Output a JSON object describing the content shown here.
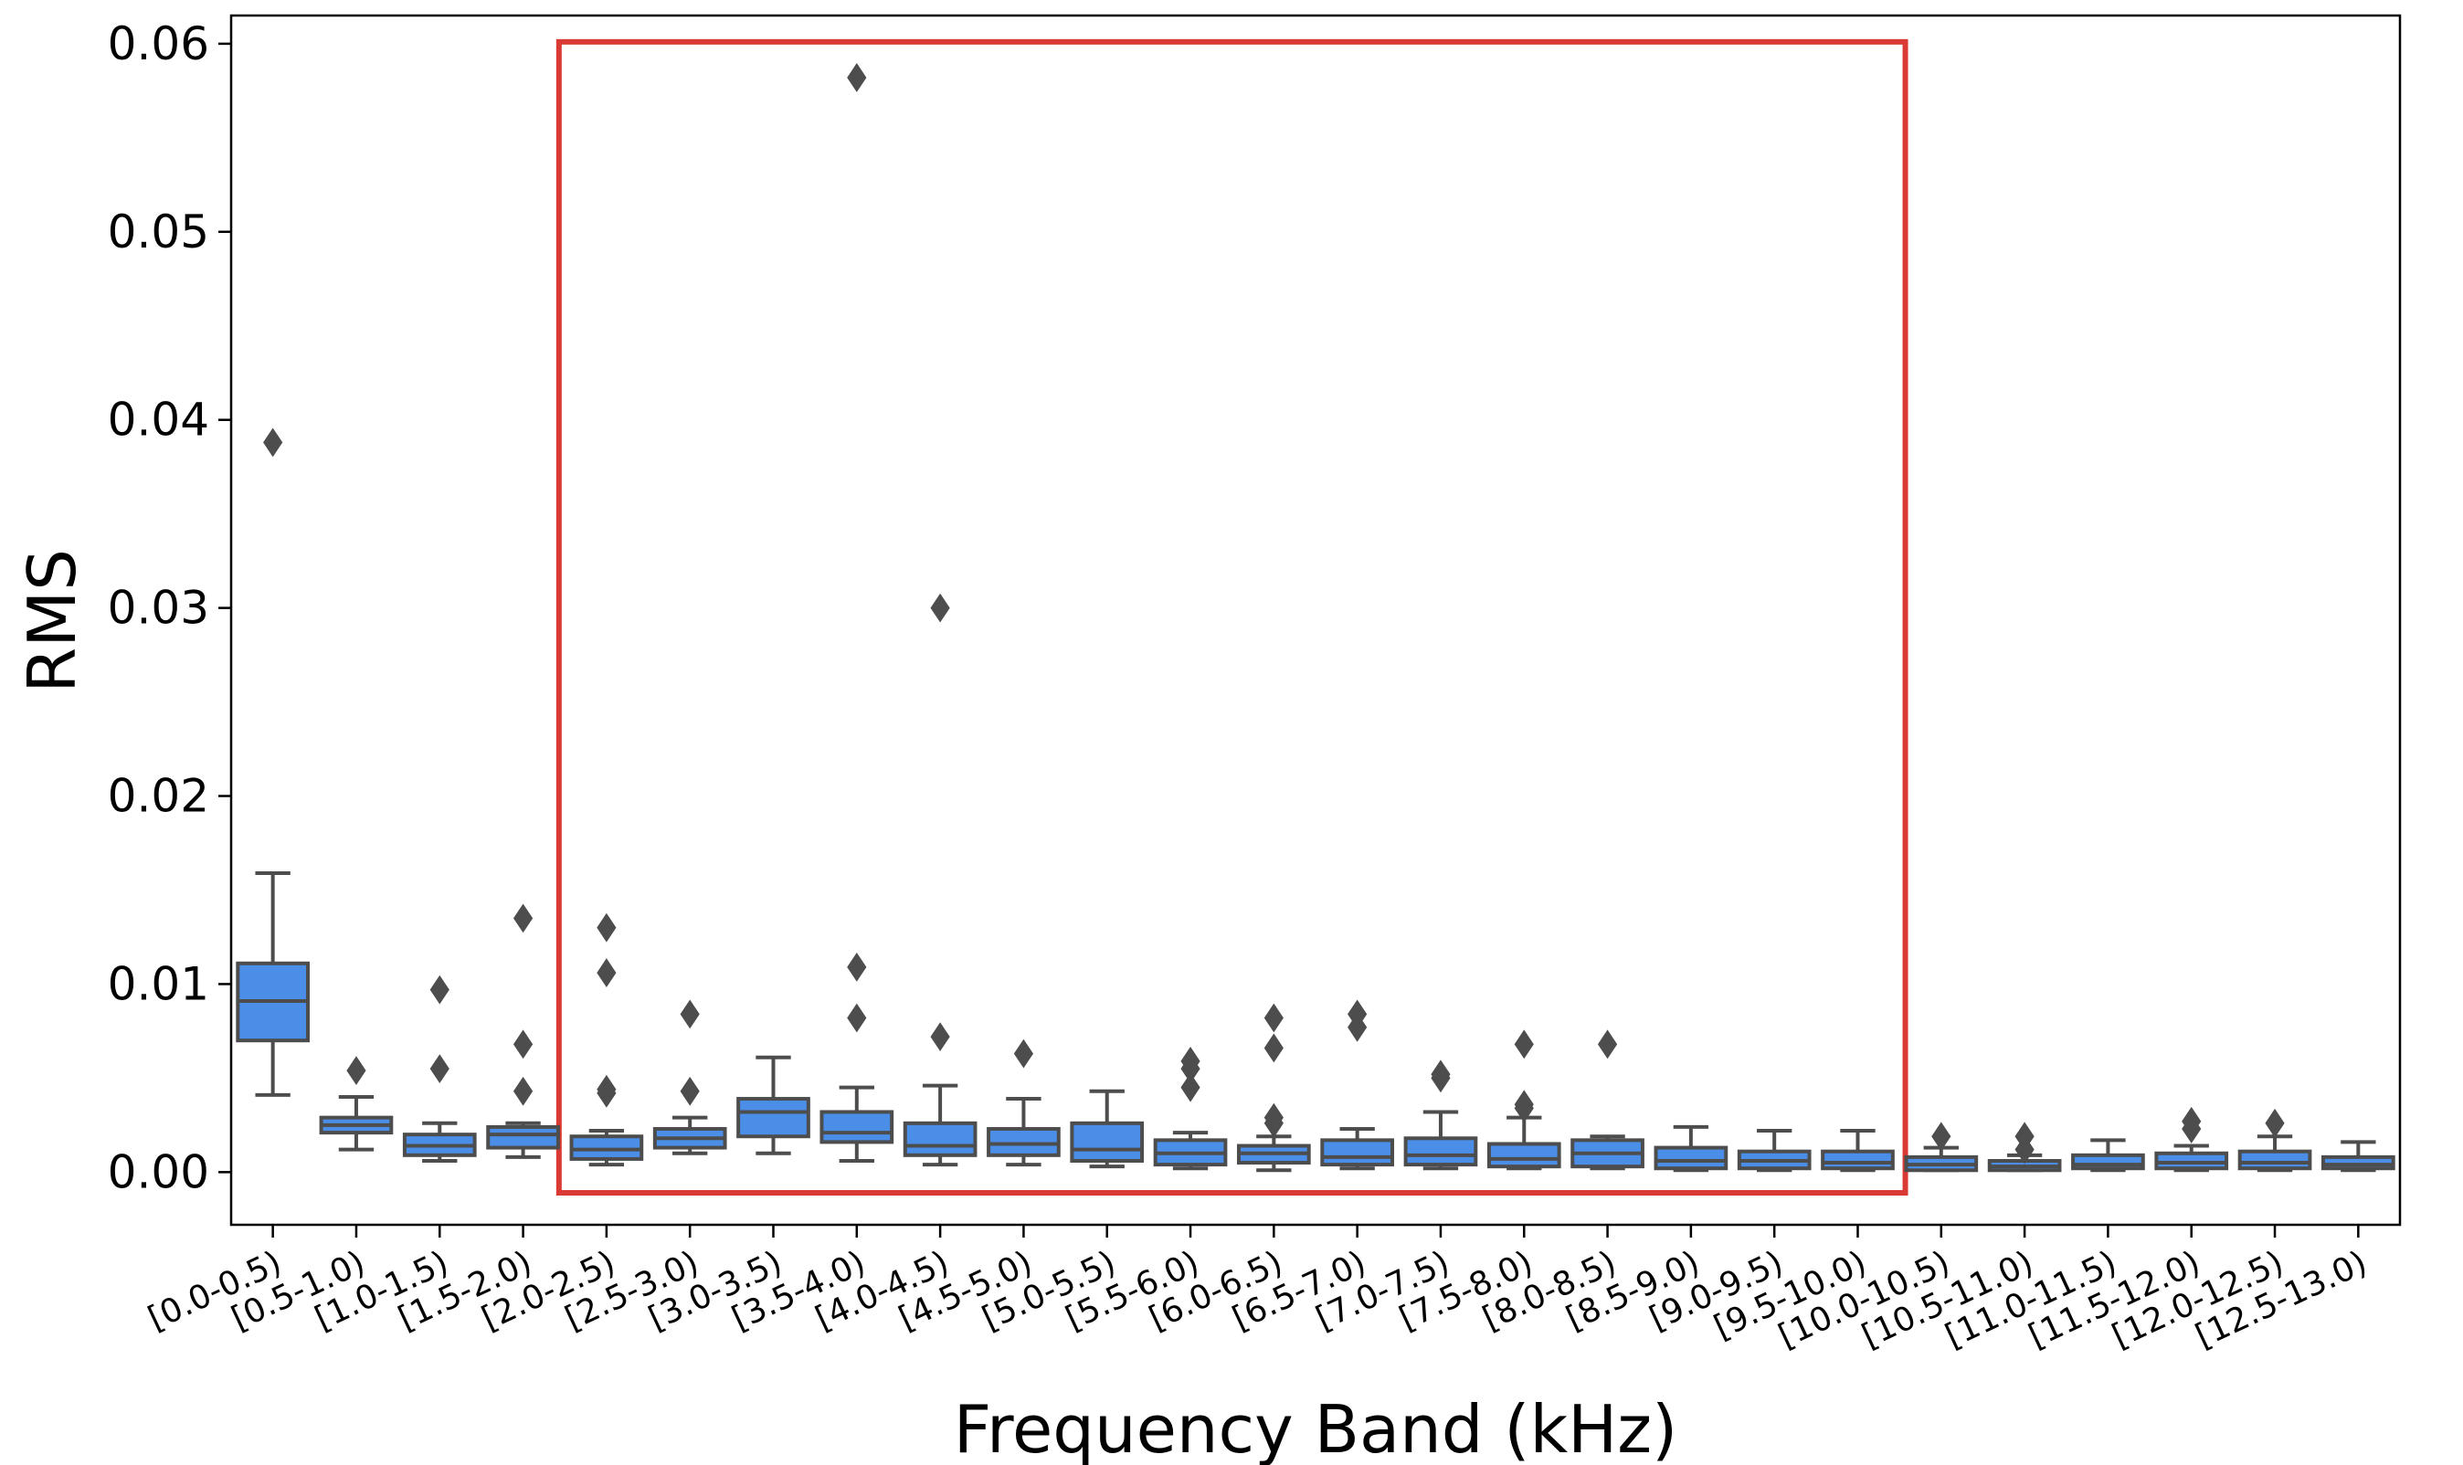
{
  "chart_data": {
    "type": "box",
    "title": "",
    "xlabel": "Frequency Band (kHz)",
    "ylabel": "RMS",
    "ylim": [
      -0.0028,
      0.0615
    ],
    "yticks": [
      0.0,
      0.01,
      0.02,
      0.03,
      0.04,
      0.05,
      0.06
    ],
    "ytick_labels": [
      "0.00",
      "0.01",
      "0.02",
      "0.03",
      "0.04",
      "0.05",
      "0.06"
    ],
    "grid": false,
    "categories": [
      "[0.0-0.5)",
      "[0.5-1.0)",
      "[1.0-1.5)",
      "[1.5-2.0)",
      "[2.0-2.5)",
      "[2.5-3.0)",
      "[3.0-3.5)",
      "[3.5-4.0)",
      "[4.0-4.5)",
      "[4.5-5.0)",
      "[5.0-5.5)",
      "[5.5-6.0)",
      "[6.0-6.5)",
      "[6.5-7.0)",
      "[7.0-7.5)",
      "[7.5-8.0)",
      "[8.0-8.5)",
      "[8.5-9.0)",
      "[9.0-9.5)",
      "[9.5-10.0)",
      "[10.0-10.5)",
      "[10.5-11.0)",
      "[11.0-11.5)",
      "[11.5-12.0)",
      "[12.0-12.5)",
      "[12.5-13.0)"
    ],
    "boxes": [
      {
        "whislo": 0.0041,
        "q1": 0.007,
        "med": 0.0091,
        "q3": 0.0111,
        "whishi": 0.0159,
        "fliers": [
          0.0388
        ]
      },
      {
        "whislo": 0.0012,
        "q1": 0.0021,
        "med": 0.0025,
        "q3": 0.0029,
        "whishi": 0.004,
        "fliers": [
          0.0054
        ]
      },
      {
        "whislo": 0.0006,
        "q1": 0.0009,
        "med": 0.0014,
        "q3": 0.002,
        "whishi": 0.0026,
        "fliers": [
          0.0055,
          0.0097
        ]
      },
      {
        "whislo": 0.0008,
        "q1": 0.0013,
        "med": 0.002,
        "q3": 0.0024,
        "whishi": 0.0026,
        "fliers": [
          0.0043,
          0.0068,
          0.0135
        ]
      },
      {
        "whislo": 0.0004,
        "q1": 0.0007,
        "med": 0.0012,
        "q3": 0.0019,
        "whishi": 0.0022,
        "fliers": [
          0.0042,
          0.0044,
          0.0106,
          0.013
        ]
      },
      {
        "whislo": 0.001,
        "q1": 0.0013,
        "med": 0.0018,
        "q3": 0.0023,
        "whishi": 0.0029,
        "fliers": [
          0.0043,
          0.0084
        ]
      },
      {
        "whislo": 0.001,
        "q1": 0.0019,
        "med": 0.0032,
        "q3": 0.0039,
        "whishi": 0.0061,
        "fliers": []
      },
      {
        "whislo": 0.0006,
        "q1": 0.0016,
        "med": 0.0021,
        "q3": 0.0032,
        "whishi": 0.0045,
        "fliers": [
          0.0082,
          0.0109,
          0.0582
        ]
      },
      {
        "whislo": 0.0004,
        "q1": 0.0009,
        "med": 0.0014,
        "q3": 0.0026,
        "whishi": 0.0046,
        "fliers": [
          0.0072,
          0.03
        ]
      },
      {
        "whislo": 0.0004,
        "q1": 0.0009,
        "med": 0.0015,
        "q3": 0.0023,
        "whishi": 0.0039,
        "fliers": [
          0.0063
        ]
      },
      {
        "whislo": 0.0003,
        "q1": 0.0006,
        "med": 0.0012,
        "q3": 0.0026,
        "whishi": 0.0043,
        "fliers": []
      },
      {
        "whislo": 0.0002,
        "q1": 0.0004,
        "med": 0.001,
        "q3": 0.0017,
        "whishi": 0.0021,
        "fliers": [
          0.0045,
          0.0055,
          0.0059
        ]
      },
      {
        "whislo": 0.0001,
        "q1": 0.0005,
        "med": 0.001,
        "q3": 0.0014,
        "whishi": 0.0019,
        "fliers": [
          0.0026,
          0.0029,
          0.0066,
          0.0082
        ]
      },
      {
        "whislo": 0.0002,
        "q1": 0.0004,
        "med": 0.0008,
        "q3": 0.0017,
        "whishi": 0.0023,
        "fliers": [
          0.0077,
          0.0084
        ]
      },
      {
        "whislo": 0.0002,
        "q1": 0.0004,
        "med": 0.0009,
        "q3": 0.0018,
        "whishi": 0.0032,
        "fliers": [
          0.005,
          0.0052
        ]
      },
      {
        "whislo": 0.0002,
        "q1": 0.0003,
        "med": 0.0007,
        "q3": 0.0015,
        "whishi": 0.0029,
        "fliers": [
          0.0034,
          0.0036,
          0.0068
        ]
      },
      {
        "whislo": 0.0002,
        "q1": 0.0003,
        "med": 0.001,
        "q3": 0.0017,
        "whishi": 0.0019,
        "fliers": [
          0.0068
        ]
      },
      {
        "whislo": 0.0001,
        "q1": 0.0002,
        "med": 0.0006,
        "q3": 0.0013,
        "whishi": 0.0024,
        "fliers": []
      },
      {
        "whislo": 0.0001,
        "q1": 0.0002,
        "med": 0.0006,
        "q3": 0.0011,
        "whishi": 0.0022,
        "fliers": []
      },
      {
        "whislo": 0.0001,
        "q1": 0.0002,
        "med": 0.0005,
        "q3": 0.0011,
        "whishi": 0.0022,
        "fliers": []
      },
      {
        "whislo": 0.0001,
        "q1": 0.0001,
        "med": 0.0004,
        "q3": 0.0008,
        "whishi": 0.0013,
        "fliers": [
          0.0019
        ]
      },
      {
        "whislo": 0.0001,
        "q1": 0.0001,
        "med": 0.0003,
        "q3": 0.0006,
        "whishi": 0.0009,
        "fliers": [
          0.0012,
          0.0019
        ]
      },
      {
        "whislo": 0.0001,
        "q1": 0.0002,
        "med": 0.0004,
        "q3": 0.0009,
        "whishi": 0.0017,
        "fliers": []
      },
      {
        "whislo": 0.0001,
        "q1": 0.0002,
        "med": 0.0005,
        "q3": 0.001,
        "whishi": 0.0014,
        "fliers": [
          0.0023,
          0.0027
        ]
      },
      {
        "whislo": 0.0001,
        "q1": 0.0002,
        "med": 0.0005,
        "q3": 0.0011,
        "whishi": 0.0019,
        "fliers": [
          0.0026
        ]
      },
      {
        "whislo": 0.0001,
        "q1": 0.0002,
        "med": 0.0004,
        "q3": 0.0008,
        "whishi": 0.0016,
        "fliers": []
      }
    ],
    "highlight": {
      "from_category": "[2.0-2.5)",
      "to_category": "[9.5-10.0)",
      "y_range": [
        -0.0011,
        0.0601
      ]
    },
    "colors": {
      "box_fill": "#4a8ee8",
      "box_edge": "#4d4d4d",
      "flier": "#4d4d4d",
      "highlight": "#d93a33",
      "axis": "#000000"
    }
  }
}
